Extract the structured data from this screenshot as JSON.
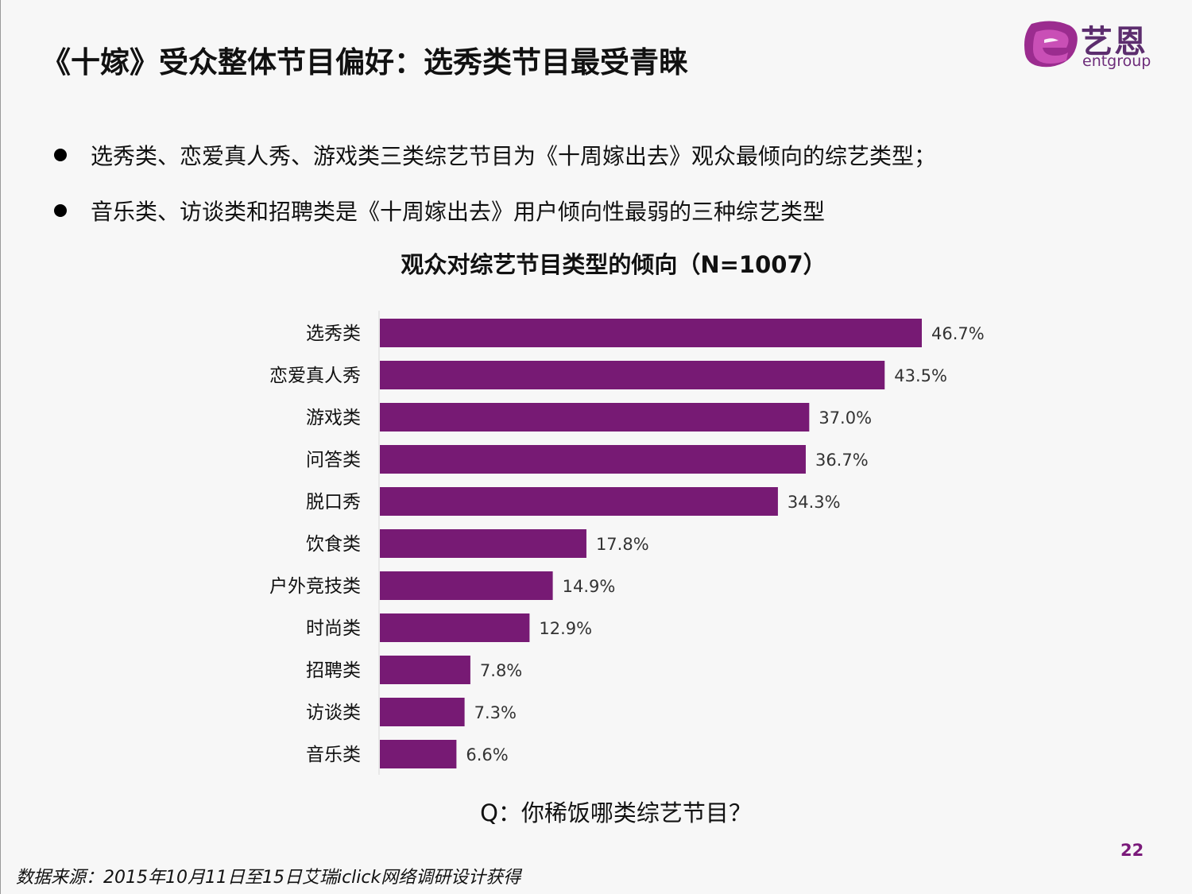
{
  "page": {
    "title": "《十嫁》受众整体节目偏好：选秀类节目最受青睐",
    "page_number": "22",
    "source": "数据来源：2015年10月11日至15日艾瑞iclick网络调研设计获得",
    "question": "Q：你稀饭哪类综艺节目？"
  },
  "logo": {
    "cn": "艺恩",
    "en": "entgroup",
    "colors": {
      "outer": "#9b2c8f",
      "inner": "#c94fb6",
      "text": "#5c2d6e"
    }
  },
  "bullets": [
    "选秀类、恋爱真人秀、游戏类三类综艺节目为《十周嫁出去》观众最倾向的综艺类型；",
    "音乐类、访谈类和招聘类是《十周嫁出去》用户倾向性最弱的三种综艺类型"
  ],
  "chart_data": {
    "type": "bar",
    "orientation": "horizontal",
    "title": "观众对综艺节目类型的倾向（N=1007）",
    "categories": [
      "选秀类",
      "恋爱真人秀",
      "游戏类",
      "问答类",
      "脱口秀",
      "饮食类",
      "户外竞技类",
      "时尚类",
      "招聘类",
      "访谈类",
      "音乐类"
    ],
    "values": [
      46.7,
      43.5,
      37.0,
      36.7,
      34.3,
      17.8,
      14.9,
      12.9,
      7.8,
      7.3,
      6.6
    ],
    "value_labels": [
      "46.7%",
      "43.5%",
      "37.0%",
      "36.7%",
      "34.3%",
      "17.8%",
      "14.9%",
      "12.9%",
      "7.8%",
      "7.3%",
      "6.6%"
    ],
    "unit": "%",
    "xlim": [
      0,
      46.7
    ],
    "bar_color": "#771a74",
    "grid": false,
    "legend": "none"
  }
}
